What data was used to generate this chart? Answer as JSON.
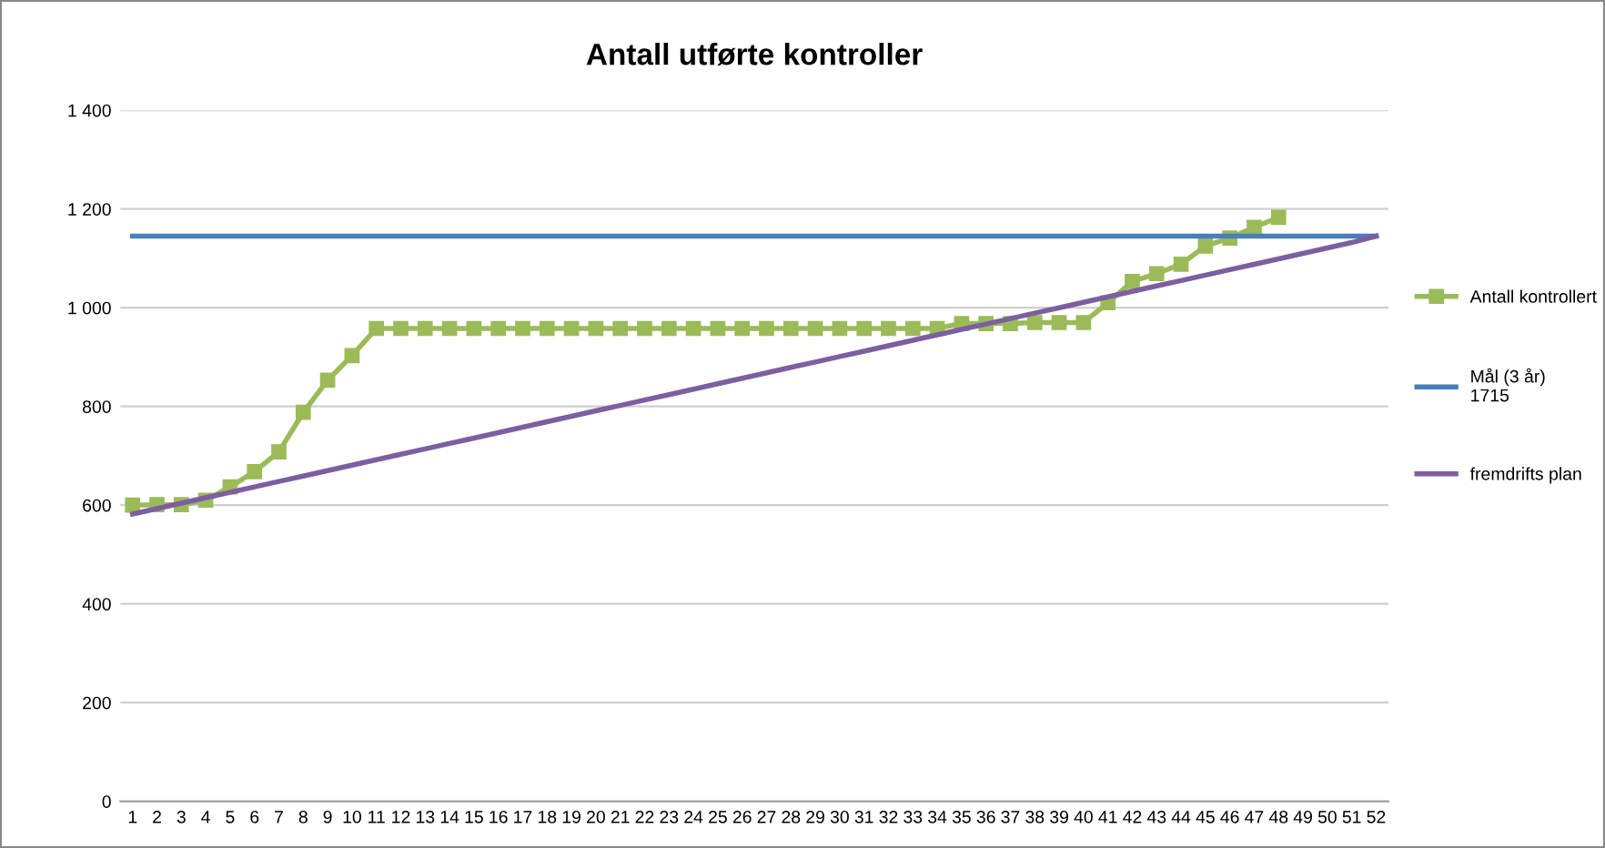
{
  "chart_data": {
    "type": "line",
    "title": "Antall utførte kontroller",
    "categories": [
      "1",
      "2",
      "3",
      "4",
      "5",
      "6",
      "7",
      "8",
      "9",
      "10",
      "11",
      "12",
      "13",
      "14",
      "15",
      "16",
      "17",
      "18",
      "19",
      "20",
      "21",
      "22",
      "23",
      "24",
      "25",
      "26",
      "27",
      "28",
      "29",
      "30",
      "31",
      "32",
      "33",
      "34",
      "35",
      "36",
      "37",
      "38",
      "39",
      "40",
      "41",
      "42",
      "43",
      "44",
      "45",
      "46",
      "47",
      "48",
      "49",
      "50",
      "51",
      "52"
    ],
    "series": [
      {
        "name": "Antall kontrollert",
        "color": "#9bbb59",
        "marker": "square",
        "values": [
          600,
          601,
          601,
          610,
          637,
          668,
          708,
          788,
          853,
          903,
          958,
          958,
          958,
          958,
          958,
          958,
          958,
          958,
          958,
          958,
          958,
          958,
          958,
          958,
          958,
          958,
          958,
          958,
          958,
          958,
          958,
          958,
          958,
          958,
          968,
          968,
          968,
          970,
          970,
          970,
          1010,
          1053,
          1069,
          1088,
          1125,
          1141,
          1163,
          1183,
          null,
          null,
          null,
          null
        ]
      },
      {
        "name": "Mål (3 år)\n1715",
        "color": "#4a7ebb",
        "marker": "none",
        "values": [
          1145,
          1145,
          1145,
          1145,
          1145,
          1145,
          1145,
          1145,
          1145,
          1145,
          1145,
          1145,
          1145,
          1145,
          1145,
          1145,
          1145,
          1145,
          1145,
          1145,
          1145,
          1145,
          1145,
          1145,
          1145,
          1145,
          1145,
          1145,
          1145,
          1145,
          1145,
          1145,
          1145,
          1145,
          1145,
          1145,
          1145,
          1145,
          1145,
          1145,
          1145,
          1145,
          1145,
          1145,
          1145,
          1145,
          1145,
          1145,
          1145,
          1145,
          1145,
          1145
        ]
      },
      {
        "name": "fremdrifts plan",
        "color": "#7d5fa0",
        "marker": "none",
        "values": [
          582,
          593,
          604,
          615,
          626,
          637,
          648,
          659,
          670,
          681,
          692,
          703,
          714,
          725,
          736,
          747,
          758,
          769,
          780,
          791,
          802,
          813,
          824,
          835,
          846,
          857,
          868,
          879,
          890,
          901,
          912,
          923,
          934,
          945,
          956,
          967,
          978,
          989,
          1000,
          1011,
          1022,
          1033,
          1044,
          1055,
          1066,
          1077,
          1088,
          1099,
          1110,
          1121,
          1132,
          1145
        ]
      }
    ],
    "ylim": [
      0,
      1400
    ],
    "yticks": [
      {
        "value": 0,
        "label": "0"
      },
      {
        "value": 200,
        "label": "200"
      },
      {
        "value": 400,
        "label": "400"
      },
      {
        "value": 600,
        "label": "600"
      },
      {
        "value": 800,
        "label": "800"
      },
      {
        "value": 1000,
        "label": "1 000"
      },
      {
        "value": 1200,
        "label": "1 200"
      },
      {
        "value": 1400,
        "label": "1 400"
      }
    ],
    "grid": "y",
    "legend": "right"
  }
}
